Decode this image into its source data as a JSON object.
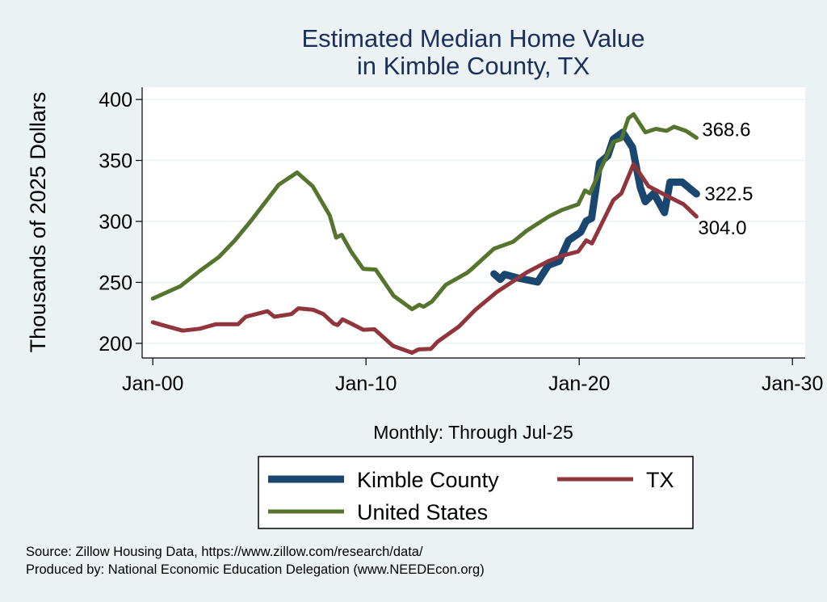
{
  "chart_data": {
    "type": "line",
    "title": [
      "Estimated Median Home Value",
      "in Kimble County, TX"
    ],
    "xlabel": "Monthly: Through Jul-25",
    "ylabel": "Thousands of 2025 Dollars",
    "xlim": [
      1999.5,
      2030.6
    ],
    "ylim": [
      188,
      410
    ],
    "grid": true,
    "x_ticks": [
      {
        "value": 2000,
        "label": "Jan-00"
      },
      {
        "value": 2010,
        "label": "Jan-10"
      },
      {
        "value": 2020,
        "label": "Jan-20"
      },
      {
        "value": 2030,
        "label": "Jan-30"
      }
    ],
    "y_ticks": [
      200,
      250,
      300,
      350,
      400
    ],
    "legend_placement": "bottom",
    "colors": {
      "kimble": "#1a476f",
      "tx": "#90353b",
      "us": "#55752f",
      "title": "#1c2f5a"
    },
    "series": [
      {
        "key": "kimble",
        "name": "Kimble County",
        "end_label": "322.5",
        "x": [
          2016.0,
          2016.3,
          2016.5,
          2017.1,
          2018.05,
          2018.55,
          2019.06,
          2019.5,
          2020.07,
          2020.33,
          2020.58,
          2020.96,
          2021.34,
          2021.6,
          2022.04,
          2022.5,
          2022.87,
          2023.1,
          2023.5,
          2024.0,
          2024.26,
          2024.83,
          2025.15,
          2025.5
        ],
        "y": [
          257,
          252.5,
          256.5,
          253.7,
          250.3,
          264,
          267.4,
          284.4,
          291.2,
          300.3,
          302.6,
          348.1,
          353.8,
          367.4,
          373.1,
          360.6,
          327.6,
          316.2,
          323,
          307.2,
          332.2,
          332.2,
          327.6,
          322.5
        ]
      },
      {
        "key": "tx",
        "name": "TX",
        "end_label": "304.0",
        "x": [
          2000,
          2000.45,
          2001.4,
          2002.2,
          2002.97,
          2004,
          2004.36,
          2005.38,
          2005.7,
          2006.5,
          2006.83,
          2007.53,
          2008.0,
          2008.48,
          2008.67,
          2008.9,
          2009.3,
          2009.87,
          2010.4,
          2011.27,
          2012.16,
          2012.47,
          2013.04,
          2013.36,
          2014.37,
          2015.13,
          2016.15,
          2017.54,
          2018.55,
          2019.2,
          2019.95,
          2020.33,
          2020.6,
          2021.6,
          2021.98,
          2022.55,
          2023.25,
          2024.13,
          2024.9,
          2025.5
        ],
        "y": [
          217.3,
          215,
          210.4,
          212,
          215.7,
          215.7,
          221.8,
          226.4,
          221.8,
          224,
          228.7,
          227.5,
          224,
          216.2,
          215,
          219.6,
          216.2,
          211.1,
          211.5,
          197.9,
          192.3,
          195,
          195.4,
          201.4,
          213.9,
          227.5,
          242.3,
          258.2,
          267.4,
          271.9,
          275.3,
          284.4,
          282,
          317.4,
          323,
          347,
          328.8,
          320.8,
          314,
          304.0
        ]
      },
      {
        "key": "us",
        "name": "United States",
        "end_label": "368.6",
        "x": [
          2000,
          2001.3,
          2002.2,
          2003.1,
          2003.85,
          2004.6,
          2005.4,
          2005.9,
          2006.77,
          2007.5,
          2008.3,
          2008.6,
          2008.86,
          2009.3,
          2009.87,
          2010.45,
          2011.3,
          2012.16,
          2012.5,
          2012.7,
          2013.1,
          2013.74,
          2014.75,
          2015.0,
          2016.0,
          2016.9,
          2017.54,
          2018.55,
          2019.2,
          2019.95,
          2020.27,
          2020.5,
          2021.2,
          2021.6,
          2021.98,
          2022.3,
          2022.55,
          2023.1,
          2023.6,
          2024.1,
          2024.45,
          2025.0,
          2025.5
        ],
        "y": [
          236.7,
          246.9,
          259.4,
          270.8,
          284.4,
          300.3,
          318.6,
          330,
          340.1,
          328.8,
          304.9,
          286.7,
          289,
          275.3,
          261,
          260.5,
          238.9,
          228,
          231.6,
          230,
          234.3,
          248,
          258,
          261.6,
          277.6,
          283.3,
          292.4,
          303.8,
          309.4,
          314,
          325.4,
          323,
          350.4,
          365.2,
          367.4,
          384.5,
          387.9,
          373.1,
          375.9,
          374.3,
          377.6,
          374.3,
          368.6
        ]
      }
    ]
  },
  "footer": {
    "source": "Source: Zillow Housing Data, https://www.zillow.com/research/data/",
    "produced_by": "Produced by: National Economic Education Delegation (www.NEEDEcon.org)"
  }
}
